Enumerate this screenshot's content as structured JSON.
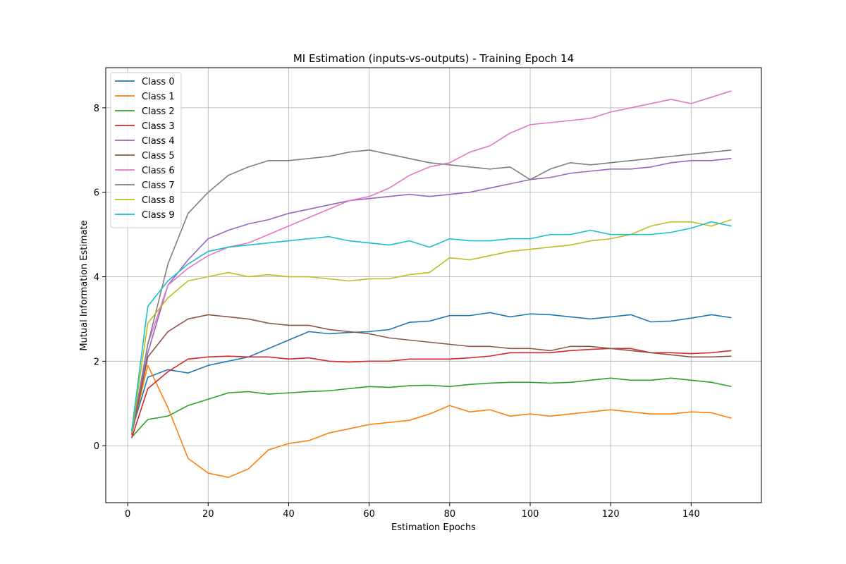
{
  "chart_data": {
    "type": "line",
    "title": "MI Estimation (inputs-vs-outputs) - Training Epoch 14",
    "xlabel": "Estimation Epochs",
    "ylabel": "Mutual Information Estimate",
    "xlim": [
      -5.45,
      157.45
    ],
    "ylim": [
      -1.35,
      8.95
    ],
    "xticks": [
      0,
      20,
      40,
      60,
      80,
      100,
      120,
      140
    ],
    "yticks": [
      0,
      2,
      4,
      6,
      8
    ],
    "grid": true,
    "legend_position": "upper-left",
    "x_start": 1,
    "x_step": 5,
    "series": [
      {
        "name": "Class 0",
        "color": "#1f77b4",
        "values": [
          0.35,
          1.62,
          1.8,
          1.72,
          1.9,
          2.0,
          2.1,
          2.3,
          2.5,
          2.7,
          2.65,
          2.68,
          2.7,
          2.75,
          2.92,
          2.95,
          3.08,
          3.08,
          3.15,
          3.05,
          3.12,
          3.1,
          3.05,
          3.0,
          3.05,
          3.1,
          2.93,
          2.95,
          3.02,
          3.1,
          3.03
        ]
      },
      {
        "name": "Class 1",
        "color": "#ff7f0e",
        "values": [
          0.3,
          1.9,
          0.9,
          -0.3,
          -0.65,
          -0.75,
          -0.55,
          -0.1,
          0.05,
          0.12,
          0.3,
          0.4,
          0.5,
          0.55,
          0.6,
          0.75,
          0.95,
          0.8,
          0.85,
          0.7,
          0.75,
          0.7,
          0.75,
          0.8,
          0.85,
          0.8,
          0.75,
          0.75,
          0.8,
          0.78,
          0.65
        ]
      },
      {
        "name": "Class 2",
        "color": "#2ca02c",
        "values": [
          0.2,
          0.62,
          0.7,
          0.95,
          1.1,
          1.25,
          1.28,
          1.22,
          1.25,
          1.28,
          1.3,
          1.35,
          1.4,
          1.38,
          1.42,
          1.43,
          1.4,
          1.45,
          1.48,
          1.5,
          1.5,
          1.48,
          1.5,
          1.55,
          1.6,
          1.55,
          1.55,
          1.6,
          1.55,
          1.5,
          1.4
        ]
      },
      {
        "name": "Class 3",
        "color": "#d62728",
        "values": [
          0.18,
          1.35,
          1.75,
          2.05,
          2.1,
          2.12,
          2.1,
          2.1,
          2.05,
          2.08,
          2.0,
          1.98,
          2.0,
          2.0,
          2.05,
          2.05,
          2.05,
          2.08,
          2.12,
          2.2,
          2.2,
          2.2,
          2.25,
          2.28,
          2.3,
          2.3,
          2.2,
          2.2,
          2.18,
          2.2,
          2.25
        ]
      },
      {
        "name": "Class 4",
        "color": "#9467bd",
        "values": [
          0.3,
          2.2,
          3.8,
          4.4,
          4.9,
          5.1,
          5.25,
          5.35,
          5.5,
          5.6,
          5.7,
          5.8,
          5.85,
          5.9,
          5.95,
          5.9,
          5.95,
          6.0,
          6.1,
          6.2,
          6.3,
          6.35,
          6.45,
          6.5,
          6.55,
          6.55,
          6.6,
          6.7,
          6.75,
          6.75,
          6.8
        ]
      },
      {
        "name": "Class 5",
        "color": "#8c564b",
        "values": [
          0.25,
          2.1,
          2.7,
          3.0,
          3.1,
          3.05,
          3.0,
          2.9,
          2.85,
          2.85,
          2.75,
          2.7,
          2.65,
          2.55,
          2.5,
          2.45,
          2.4,
          2.35,
          2.35,
          2.3,
          2.3,
          2.25,
          2.35,
          2.35,
          2.3,
          2.25,
          2.2,
          2.15,
          2.1,
          2.1,
          2.12
        ]
      },
      {
        "name": "Class 6",
        "color": "#e377c2",
        "values": [
          0.3,
          2.4,
          3.8,
          4.2,
          4.5,
          4.7,
          4.8,
          5.0,
          5.2,
          5.4,
          5.6,
          5.8,
          5.9,
          6.1,
          6.4,
          6.6,
          6.7,
          6.95,
          7.1,
          7.4,
          7.6,
          7.65,
          7.7,
          7.75,
          7.9,
          8.0,
          8.1,
          8.2,
          8.1,
          8.25,
          8.4
        ]
      },
      {
        "name": "Class 7",
        "color": "#7f7f7f",
        "values": [
          0.28,
          2.4,
          4.3,
          5.5,
          6.0,
          6.4,
          6.6,
          6.75,
          6.75,
          6.8,
          6.85,
          6.95,
          7.0,
          6.9,
          6.8,
          6.7,
          6.65,
          6.6,
          6.55,
          6.6,
          6.3,
          6.55,
          6.7,
          6.65,
          6.7,
          6.75,
          6.8,
          6.85,
          6.9,
          6.95,
          7.0
        ]
      },
      {
        "name": "Class 8",
        "color": "#bcbd22",
        "values": [
          0.3,
          2.9,
          3.5,
          3.9,
          4.0,
          4.1,
          4.0,
          4.05,
          4.0,
          4.0,
          3.95,
          3.9,
          3.95,
          3.95,
          4.05,
          4.1,
          4.45,
          4.4,
          4.5,
          4.6,
          4.65,
          4.7,
          4.75,
          4.85,
          4.9,
          5.0,
          5.2,
          5.3,
          5.3,
          5.2,
          5.35
        ]
      },
      {
        "name": "Class 9",
        "color": "#17becf",
        "values": [
          0.35,
          3.3,
          3.9,
          4.3,
          4.6,
          4.7,
          4.75,
          4.8,
          4.85,
          4.9,
          4.95,
          4.85,
          4.8,
          4.75,
          4.85,
          4.7,
          4.9,
          4.85,
          4.85,
          4.9,
          4.9,
          5.0,
          5.0,
          5.1,
          5.0,
          5.0,
          5.0,
          5.05,
          5.15,
          5.3,
          5.2
        ]
      }
    ]
  }
}
